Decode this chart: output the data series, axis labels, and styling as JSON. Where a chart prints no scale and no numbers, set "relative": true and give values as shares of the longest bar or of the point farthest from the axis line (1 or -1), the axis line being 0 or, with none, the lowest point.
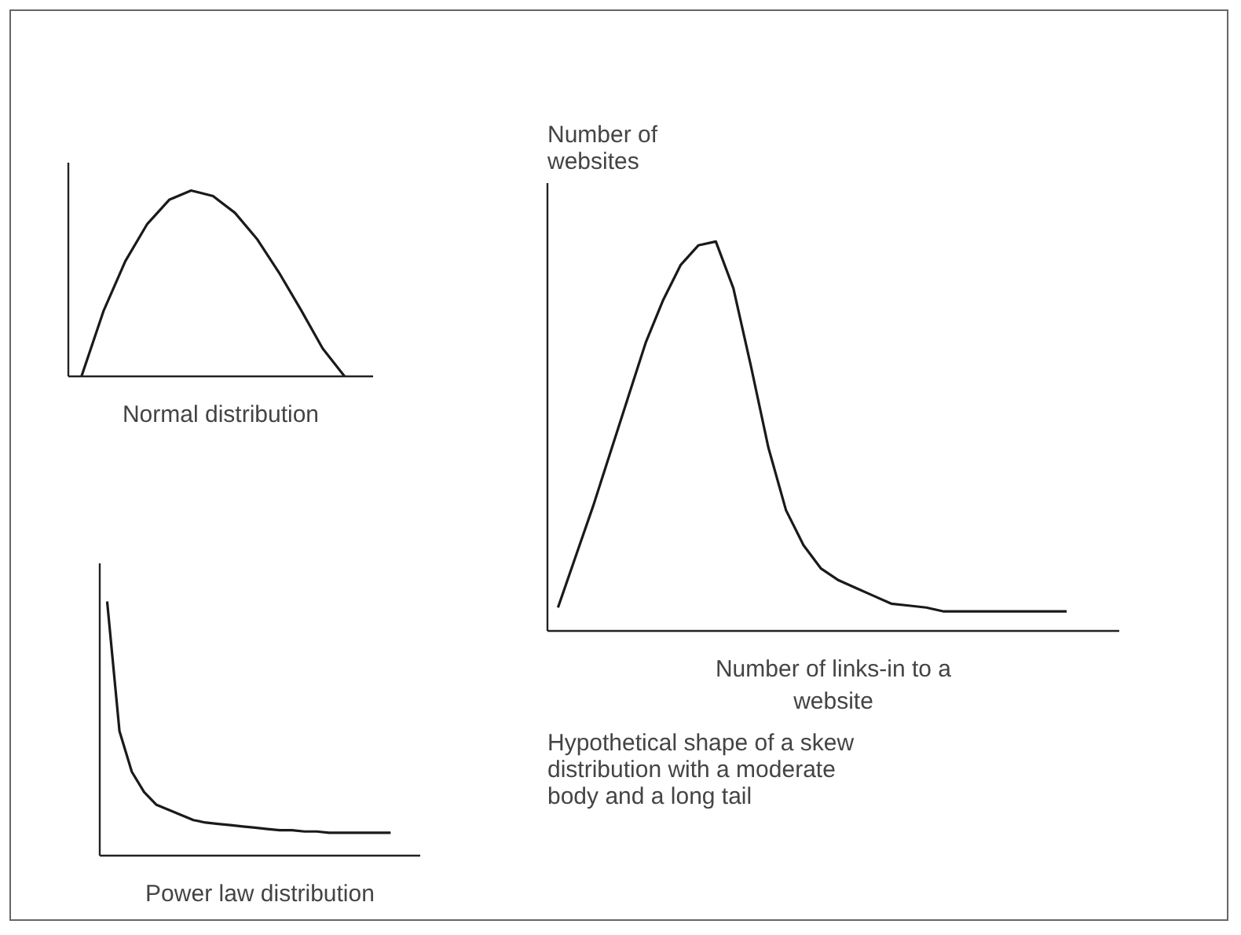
{
  "chart_data": [
    {
      "type": "line",
      "relative": true,
      "tick_labels": false,
      "color": "#1a1a1a",
      "xlabel": "Normal distribution",
      "categories": [
        null,
        null,
        null,
        null,
        null,
        null,
        null,
        null,
        null,
        null,
        null,
        null,
        null
      ],
      "values": [
        0,
        0.35,
        0.62,
        0.82,
        0.95,
        1,
        0.97,
        0.88,
        0.74,
        0.56,
        0.36,
        0.15,
        0
      ]
    },
    {
      "type": "line",
      "relative": true,
      "tick_labels": false,
      "color": "#1a1a1a",
      "ylabel": "Number of websites",
      "xlabel": "Number of links-in to a website",
      "annotations": [
        "Hypothetical shape of a skew distribution with a moderate body and a long tail"
      ],
      "categories": [
        null,
        null,
        null,
        null,
        null,
        null,
        null,
        null,
        null,
        null,
        null,
        null,
        null,
        null,
        null,
        null,
        null,
        null,
        null,
        null,
        null,
        null,
        null,
        null,
        null,
        null,
        null,
        null,
        null,
        null
      ],
      "values": [
        0.06,
        0.19,
        0.32,
        0.46,
        0.6,
        0.74,
        0.85,
        0.94,
        0.99,
        1,
        0.88,
        0.68,
        0.47,
        0.31,
        0.22,
        0.16,
        0.13,
        0.11,
        0.09,
        0.07,
        0.065,
        0.06,
        0.05,
        0.05,
        0.05,
        0.05,
        0.05,
        0.05,
        0.05,
        0.05
      ]
    },
    {
      "type": "line",
      "relative": true,
      "tick_labels": false,
      "color": "#1a1a1a",
      "xlabel": "Power law distribution",
      "categories": [
        null,
        null,
        null,
        null,
        null,
        null,
        null,
        null,
        null,
        null,
        null,
        null,
        null,
        null,
        null,
        null,
        null,
        null,
        null,
        null,
        null,
        null,
        null,
        null
      ],
      "values": [
        1,
        0.49,
        0.33,
        0.25,
        0.2,
        0.18,
        0.16,
        0.14,
        0.13,
        0.125,
        0.12,
        0.115,
        0.11,
        0.105,
        0.1,
        0.1,
        0.095,
        0.095,
        0.09,
        0.09,
        0.09,
        0.09,
        0.09,
        0.09
      ]
    }
  ]
}
